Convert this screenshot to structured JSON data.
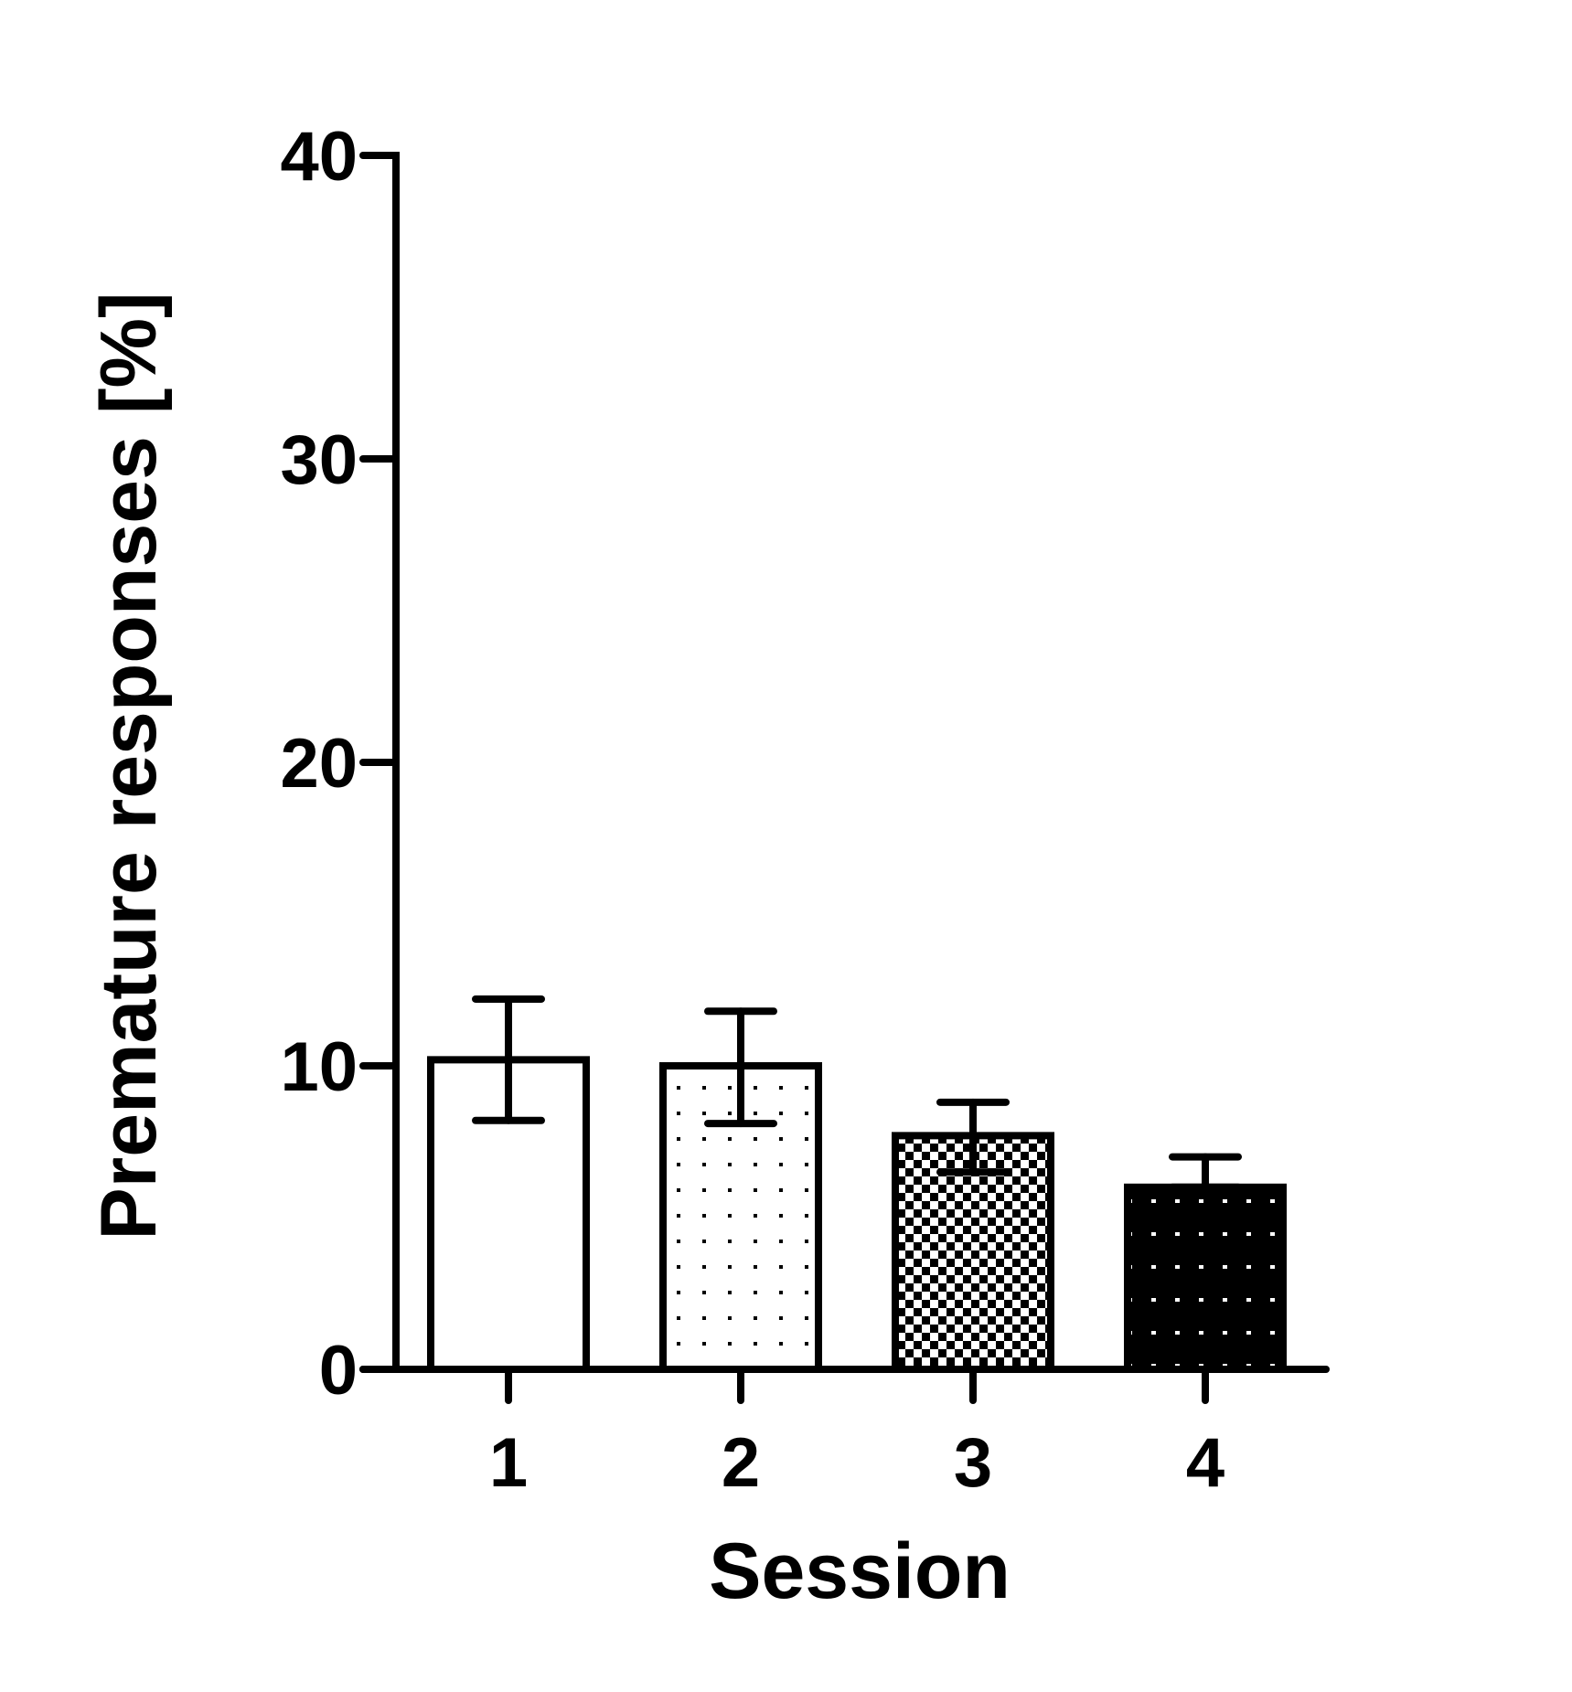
{
  "chart_data": {
    "type": "bar",
    "title": "",
    "xlabel": "Session",
    "ylabel": "Premature responses [%]",
    "categories": [
      "1",
      "2",
      "3",
      "4"
    ],
    "values": [
      10.2,
      10.0,
      7.7,
      6.0
    ],
    "error_low": [
      8.2,
      8.1,
      6.5,
      6.0
    ],
    "error_high": [
      12.2,
      11.8,
      8.8,
      7.0
    ],
    "ylim": [
      0,
      40
    ],
    "yticks": [
      0,
      10,
      20,
      30,
      40
    ],
    "ytick_labels": [
      "0",
      "10",
      "20",
      "30",
      "40"
    ],
    "fill_patterns": [
      "white",
      "sparse-dots",
      "checkerboard",
      "black-with-white-dots"
    ],
    "grid": false,
    "legend": "none",
    "colors": {
      "axis": "#000000",
      "background": "#ffffff"
    }
  }
}
